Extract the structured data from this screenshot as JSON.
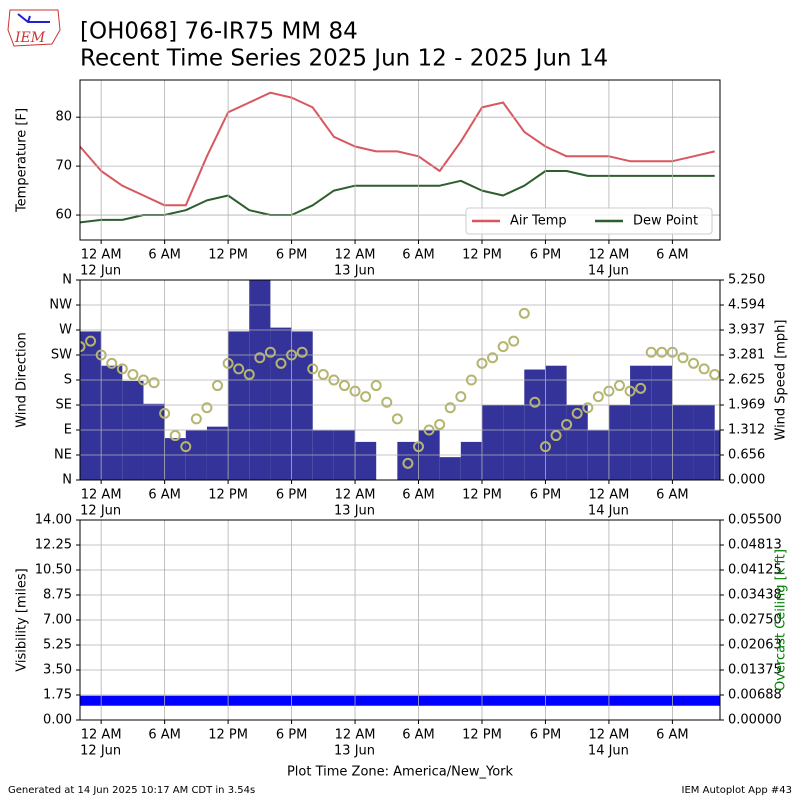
{
  "title": "[OH068] 76-IR75 MM 84",
  "subtitle": "Recent Time Series 2025 Jun 12 - 2025 Jun 14",
  "logo_text": "IEM",
  "x_axis_label": "Plot Time Zone: America/New_York",
  "footer_left": "Generated at 14 Jun 2025 10:17 AM CDT in 3.54s",
  "footer_right": "IEM Autoplot App #43",
  "chart_data": [
    {
      "type": "line",
      "xlim": [
        -2,
        58.5
      ],
      "xticks": [
        {
          "value": 0,
          "label": "12 AM"
        },
        {
          "value": 6,
          "label": "6 AM"
        },
        {
          "value": 12,
          "label": "12 PM"
        },
        {
          "value": 18,
          "label": "6 PM"
        },
        {
          "value": 24,
          "label": "12 AM"
        },
        {
          "value": 30,
          "label": "6 AM"
        },
        {
          "value": 36,
          "label": "12 PM"
        },
        {
          "value": 42,
          "label": "6 PM"
        },
        {
          "value": 48,
          "label": "12 AM"
        },
        {
          "value": 54,
          "label": "6 AM"
        }
      ],
      "xtick_dates": [
        {
          "value": 0,
          "label": "12 Jun"
        },
        {
          "value": 24,
          "label": "13 Jun"
        },
        {
          "value": 48,
          "label": "14 Jun"
        }
      ],
      "ylim": [
        54.9,
        87.6
      ],
      "yticks": [
        60,
        70,
        80
      ],
      "y_label": "Temperature [F]",
      "grid": true,
      "legend": "lower right",
      "series": [
        {
          "name": "Air Temp",
          "type": "line",
          "color": "#d9575f",
          "x": [
            -2,
            0,
            2,
            4,
            6,
            8,
            10,
            12,
            14,
            16,
            18,
            20,
            22,
            24,
            26,
            28,
            30,
            32,
            34,
            36,
            38,
            40,
            42,
            44,
            46,
            48,
            50,
            52,
            54,
            56,
            58
          ],
          "values": [
            74,
            69,
            66,
            64,
            62,
            62,
            72,
            81,
            83,
            85,
            84,
            82,
            76,
            74,
            73,
            73,
            72,
            69,
            75,
            82,
            83,
            77,
            74,
            72,
            72,
            72,
            71,
            71,
            71,
            72,
            73
          ]
        },
        {
          "name": "Dew Point",
          "type": "line",
          "color": "#2e5e2e",
          "x": [
            -2,
            0,
            2,
            4,
            6,
            8,
            10,
            12,
            14,
            16,
            18,
            20,
            22,
            24,
            26,
            28,
            30,
            32,
            34,
            36,
            38,
            40,
            42,
            44,
            46,
            48,
            50,
            52,
            54,
            56,
            58
          ],
          "values": [
            58.5,
            59,
            59,
            60,
            60,
            61,
            63,
            64,
            61,
            60,
            60,
            62,
            65,
            66,
            66,
            66,
            66,
            66,
            67,
            65,
            64,
            66,
            69,
            69,
            68,
            68,
            68,
            68,
            68,
            68,
            68
          ]
        }
      ]
    },
    {
      "type": "combo",
      "xlim": [
        -2,
        58.5
      ],
      "xticks": [
        {
          "value": 0,
          "label": "12 AM"
        },
        {
          "value": 6,
          "label": "6 AM"
        },
        {
          "value": 12,
          "label": "12 PM"
        },
        {
          "value": 18,
          "label": "6 PM"
        },
        {
          "value": 24,
          "label": "12 AM"
        },
        {
          "value": 30,
          "label": "6 AM"
        },
        {
          "value": 36,
          "label": "12 PM"
        },
        {
          "value": 42,
          "label": "6 PM"
        },
        {
          "value": 48,
          "label": "12 AM"
        },
        {
          "value": 54,
          "label": "6 AM"
        }
      ],
      "xtick_dates": [
        {
          "value": 0,
          "label": "12 Jun"
        },
        {
          "value": 24,
          "label": "13 Jun"
        },
        {
          "value": 48,
          "label": "14 Jun"
        }
      ],
      "ylim": [
        0,
        360
      ],
      "yticks": [
        {
          "value": 0,
          "label": "N"
        },
        {
          "value": 45,
          "label": "NE"
        },
        {
          "value": 90,
          "label": "E"
        },
        {
          "value": 135,
          "label": "SE"
        },
        {
          "value": 180,
          "label": "S"
        },
        {
          "value": 225,
          "label": "SW"
        },
        {
          "value": 270,
          "label": "W"
        },
        {
          "value": 315,
          "label": "NW"
        },
        {
          "value": 360,
          "label": "N"
        }
      ],
      "y_label": "Wind Direction",
      "y2lim": [
        0,
        5.25
      ],
      "y2ticks": [
        {
          "value": 0,
          "label": "0.000"
        },
        {
          "value": 0.656,
          "label": "0.656"
        },
        {
          "value": 1.312,
          "label": "1.312"
        },
        {
          "value": 1.969,
          "label": "1.969"
        },
        {
          "value": 2.625,
          "label": "2.625"
        },
        {
          "value": 3.281,
          "label": "3.281"
        },
        {
          "value": 3.937,
          "label": "3.937"
        },
        {
          "value": 4.594,
          "label": "4.594"
        },
        {
          "value": 5.25,
          "label": "5.250"
        }
      ],
      "y2_label": "Wind Speed [mph]",
      "grid": true,
      "series": [
        {
          "type": "bar",
          "axis": "y2",
          "color": "#333399",
          "bar_width": 2,
          "x": [
            -2,
            0,
            2,
            4,
            6,
            8,
            10,
            12,
            14,
            16,
            18,
            20,
            22,
            24,
            26,
            28,
            30,
            32,
            34,
            36,
            38,
            40,
            42,
            44,
            46,
            48,
            50,
            52,
            54,
            56,
            58
          ],
          "values": [
            3.9,
            3.0,
            2.6,
            2.0,
            1.1,
            1.3,
            1.4,
            3.9,
            5.25,
            4.0,
            3.9,
            1.3,
            1.3,
            1.0,
            0,
            1.0,
            1.3,
            0.6,
            1.0,
            1.97,
            1.97,
            2.9,
            3.0,
            1.97,
            1.3,
            1.97,
            3.0,
            3.0,
            1.97,
            1.97,
            1.3
          ]
        },
        {
          "type": "scatter",
          "color": "#b5b56f",
          "x": [
            -2,
            -1,
            0,
            1,
            2,
            3,
            4,
            5,
            6,
            7,
            8,
            9,
            10,
            11,
            12,
            13,
            14,
            15,
            16,
            17,
            18,
            19,
            20,
            21,
            22,
            23,
            24,
            25,
            26,
            27,
            28,
            29,
            30,
            31,
            32,
            33,
            34,
            35,
            36,
            37,
            38,
            39,
            40,
            41,
            42,
            43,
            44,
            45,
            46,
            47,
            48,
            49,
            50,
            51,
            52,
            53,
            54,
            55,
            56,
            57,
            58
          ],
          "values": [
            240,
            250,
            225,
            210,
            200,
            190,
            180,
            175,
            120,
            80,
            60,
            110,
            130,
            170,
            210,
            200,
            190,
            220,
            230,
            210,
            225,
            230,
            200,
            190,
            180,
            170,
            160,
            150,
            170,
            140,
            110,
            30,
            60,
            90,
            100,
            130,
            150,
            180,
            210,
            220,
            240,
            250,
            300,
            140,
            60,
            80,
            100,
            120,
            130,
            150,
            160,
            170,
            160,
            165,
            230,
            230,
            230,
            220,
            210,
            200,
            190
          ]
        }
      ]
    },
    {
      "type": "line",
      "xlim": [
        -2,
        58.5
      ],
      "xticks": [
        {
          "value": 0,
          "label": "12 AM"
        },
        {
          "value": 6,
          "label": "6 AM"
        },
        {
          "value": 12,
          "label": "12 PM"
        },
        {
          "value": 18,
          "label": "6 PM"
        },
        {
          "value": 24,
          "label": "12 AM"
        },
        {
          "value": 30,
          "label": "6 AM"
        },
        {
          "value": 36,
          "label": "12 PM"
        },
        {
          "value": 42,
          "label": "6 PM"
        },
        {
          "value": 48,
          "label": "12 AM"
        },
        {
          "value": 54,
          "label": "6 AM"
        }
      ],
      "xtick_dates": [
        {
          "value": 0,
          "label": "12 Jun"
        },
        {
          "value": 24,
          "label": "13 Jun"
        },
        {
          "value": 48,
          "label": "14 Jun"
        }
      ],
      "ylim": [
        0,
        14
      ],
      "yticks": [
        {
          "value": 0,
          "label": "0.00"
        },
        {
          "value": 1.75,
          "label": "1.75"
        },
        {
          "value": 3.5,
          "label": "3.50"
        },
        {
          "value": 5.25,
          "label": "5.25"
        },
        {
          "value": 7,
          "label": "7.00"
        },
        {
          "value": 8.75,
          "label": "8.75"
        },
        {
          "value": 10.5,
          "label": "10.50"
        },
        {
          "value": 12.25,
          "label": "12.25"
        },
        {
          "value": 14,
          "label": "14.00"
        }
      ],
      "y_label": "Visibility [miles]",
      "y2lim": [
        0,
        0.055
      ],
      "y2ticks": [
        {
          "value": 0,
          "label": "0.00000"
        },
        {
          "value": 0.006875,
          "label": "0.00688"
        },
        {
          "value": 0.01375,
          "label": "0.01375"
        },
        {
          "value": 0.020625,
          "label": "0.02063"
        },
        {
          "value": 0.0275,
          "label": "0.02750"
        },
        {
          "value": 0.034375,
          "label": "0.03438"
        },
        {
          "value": 0.04125,
          "label": "0.04125"
        },
        {
          "value": 0.048125,
          "label": "0.04813"
        },
        {
          "value": 0.055,
          "label": "0.05500"
        }
      ],
      "y2_label": "Overcast Ceiling [k ft]",
      "y2_label_color": "#008000",
      "grid": true,
      "series": [
        {
          "type": "line",
          "color": "#0000ff",
          "line_width": 10,
          "x": [
            -2,
            0,
            6,
            12,
            18,
            24,
            30,
            36,
            42,
            48,
            54,
            58.5
          ],
          "values": [
            1.35,
            1.35,
            1.35,
            1.35,
            1.35,
            1.35,
            1.35,
            1.35,
            1.35,
            1.35,
            1.35,
            1.35
          ]
        }
      ]
    }
  ]
}
